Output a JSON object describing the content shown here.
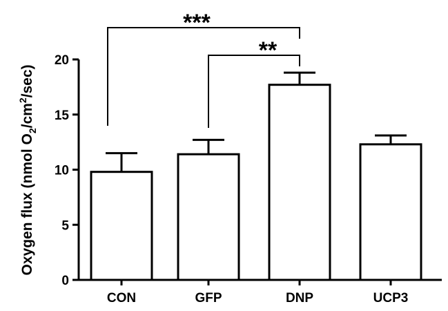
{
  "chart_data": {
    "type": "bar",
    "title": "",
    "xlabel": "",
    "ylabel": {
      "prefix": "Oxygen flux (nmol O",
      "sub": "2",
      "mid": "/cm",
      "sup": "2",
      "suffix": "/sec)"
    },
    "ylim": [
      0,
      20
    ],
    "yticks": [
      0,
      5,
      10,
      15,
      20
    ],
    "ytick_labels": [
      "0",
      "5",
      "10",
      "15",
      "20"
    ],
    "categories": [
      "CON",
      "GFP",
      "DNP",
      "UCP3"
    ],
    "values": [
      9.8,
      11.4,
      17.7,
      12.3
    ],
    "errors": [
      1.7,
      1.3,
      1.1,
      0.8
    ],
    "significance": [
      {
        "from": "CON",
        "to": "DNP",
        "label": "***"
      },
      {
        "from": "GFP",
        "to": "DNP",
        "label": "**"
      }
    ],
    "colors": {
      "bar_fill": "#ffffff",
      "stroke": "#000000"
    },
    "grid": false,
    "legend": "none"
  }
}
